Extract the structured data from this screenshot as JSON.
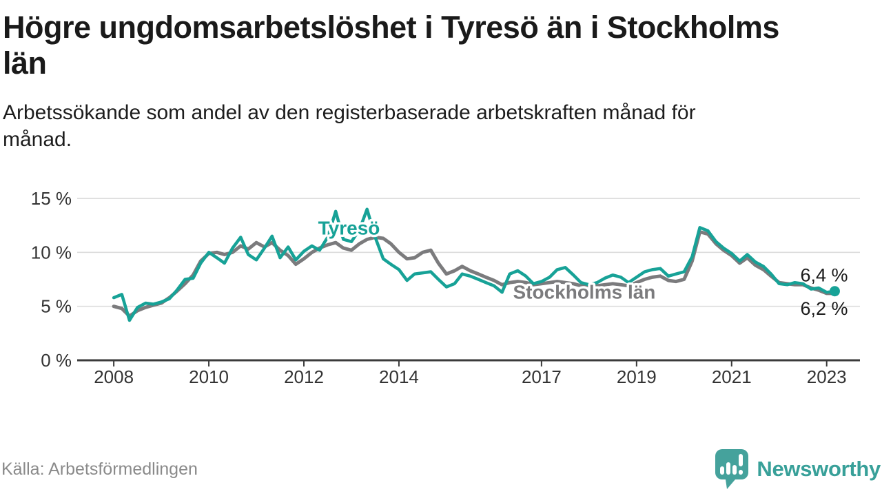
{
  "header": {
    "title_lines": [
      "Högre ungdomsarbetslöshet i Tyresö än i Stockholms",
      "län"
    ],
    "subtitle_lines": [
      "Arbetssökande som andel av den registerbaserade arbetskraften månad för",
      "månad."
    ]
  },
  "footer": {
    "source": "Källa: Arbetsförmedlingen",
    "brand": "Newsworthy"
  },
  "colors": {
    "tyreso": "#17a297",
    "stockholm": "#7b7b7d",
    "grid": "#dcdcdc",
    "axis": "#3b3b3b",
    "tick_label": "#333333",
    "end_label": "#1a1a1a",
    "source_gray": "#8a8a8a",
    "logo_teal": "#45a29c"
  },
  "chart_data": {
    "type": "line",
    "title": "Högre ungdomsarbetslöshet i Tyresö än i Stockholms län",
    "subtitle": "Arbetssökande som andel av den registerbaserade arbetskraften månad för månad.",
    "source": "Källa: Arbetsförmedlingen",
    "ylabel": "",
    "xlabel": "",
    "y_unit": "%",
    "ylim": [
      0,
      15
    ],
    "xlim": [
      2007.23,
      2023.7
    ],
    "grid": true,
    "y_ticks": [
      0,
      5,
      10,
      15
    ],
    "y_tick_labels": [
      "0 %",
      "5 %",
      "10 %",
      "15 %"
    ],
    "x_ticks": [
      2008,
      2010,
      2012,
      2014,
      2017,
      2019,
      2021,
      2023
    ],
    "x_tick_labels": [
      "2008",
      "2010",
      "2012",
      "2014",
      "2017",
      "2019",
      "2021",
      "2023"
    ],
    "series": [
      {
        "name": "Stockholms län",
        "color": "#7b7b7d",
        "line_width": 5,
        "end_label": "6,2 %",
        "end_dot": false,
        "label_anchor": {
          "x": 2017.9,
          "y": 6.35
        },
        "points": [
          [
            2008.0,
            5.0
          ],
          [
            2008.17,
            4.8
          ],
          [
            2008.33,
            4.1
          ],
          [
            2008.5,
            4.6
          ],
          [
            2008.67,
            4.9
          ],
          [
            2008.83,
            5.1
          ],
          [
            2009.0,
            5.3
          ],
          [
            2009.17,
            5.8
          ],
          [
            2009.33,
            6.4
          ],
          [
            2009.5,
            7.1
          ],
          [
            2009.67,
            7.9
          ],
          [
            2009.83,
            9.2
          ],
          [
            2010.0,
            9.9
          ],
          [
            2010.17,
            10.0
          ],
          [
            2010.33,
            9.8
          ],
          [
            2010.5,
            10.0
          ],
          [
            2010.67,
            10.6
          ],
          [
            2010.83,
            10.3
          ],
          [
            2011.0,
            10.9
          ],
          [
            2011.17,
            10.5
          ],
          [
            2011.33,
            10.9
          ],
          [
            2011.5,
            10.2
          ],
          [
            2011.67,
            9.7
          ],
          [
            2011.83,
            8.9
          ],
          [
            2012.0,
            9.4
          ],
          [
            2012.17,
            10.0
          ],
          [
            2012.33,
            10.4
          ],
          [
            2012.5,
            10.7
          ],
          [
            2012.67,
            10.9
          ],
          [
            2012.83,
            10.4
          ],
          [
            2013.0,
            10.2
          ],
          [
            2013.17,
            10.8
          ],
          [
            2013.33,
            11.2
          ],
          [
            2013.5,
            11.4
          ],
          [
            2013.67,
            11.3
          ],
          [
            2013.83,
            10.8
          ],
          [
            2014.0,
            10.0
          ],
          [
            2014.17,
            9.4
          ],
          [
            2014.33,
            9.5
          ],
          [
            2014.5,
            10.0
          ],
          [
            2014.67,
            10.2
          ],
          [
            2014.83,
            9.0
          ],
          [
            2015.0,
            8.0
          ],
          [
            2015.17,
            8.3
          ],
          [
            2015.33,
            8.7
          ],
          [
            2015.5,
            8.3
          ],
          [
            2015.67,
            8.0
          ],
          [
            2015.83,
            7.7
          ],
          [
            2016.0,
            7.4
          ],
          [
            2016.17,
            7.0
          ],
          [
            2016.33,
            7.2
          ],
          [
            2016.5,
            7.3
          ],
          [
            2016.67,
            7.2
          ],
          [
            2016.83,
            7.0
          ],
          [
            2017.0,
            7.1
          ],
          [
            2017.17,
            7.2
          ],
          [
            2017.33,
            7.3
          ],
          [
            2017.5,
            7.2
          ],
          [
            2017.67,
            7.1
          ],
          [
            2017.83,
            6.9
          ],
          [
            2018.0,
            6.8
          ],
          [
            2018.17,
            6.9
          ],
          [
            2018.33,
            7.0
          ],
          [
            2018.5,
            7.1
          ],
          [
            2018.67,
            7.0
          ],
          [
            2018.83,
            6.9
          ],
          [
            2019.0,
            7.2
          ],
          [
            2019.17,
            7.5
          ],
          [
            2019.33,
            7.7
          ],
          [
            2019.5,
            7.8
          ],
          [
            2019.67,
            7.4
          ],
          [
            2019.83,
            7.3
          ],
          [
            2020.0,
            7.5
          ],
          [
            2020.17,
            9.2
          ],
          [
            2020.33,
            11.9
          ],
          [
            2020.5,
            11.7
          ],
          [
            2020.67,
            10.8
          ],
          [
            2020.83,
            10.2
          ],
          [
            2021.0,
            9.7
          ],
          [
            2021.17,
            9.0
          ],
          [
            2021.33,
            9.5
          ],
          [
            2021.5,
            8.8
          ],
          [
            2021.67,
            8.4
          ],
          [
            2021.83,
            7.8
          ],
          [
            2022.0,
            7.2
          ],
          [
            2022.17,
            7.1
          ],
          [
            2022.33,
            7.0
          ],
          [
            2022.5,
            7.0
          ],
          [
            2022.67,
            6.7
          ],
          [
            2022.83,
            6.5
          ],
          [
            2023.0,
            6.2
          ],
          [
            2023.17,
            6.2
          ]
        ]
      },
      {
        "name": "Tyresö",
        "color": "#17a297",
        "line_width": 4.5,
        "end_label": "6,4 %",
        "end_dot": true,
        "label_anchor": {
          "x": 2012.95,
          "y": 12.3
        },
        "points": [
          [
            2008.0,
            5.8
          ],
          [
            2008.17,
            6.1
          ],
          [
            2008.33,
            3.7
          ],
          [
            2008.5,
            4.9
          ],
          [
            2008.67,
            5.3
          ],
          [
            2008.83,
            5.2
          ],
          [
            2009.0,
            5.4
          ],
          [
            2009.17,
            5.7
          ],
          [
            2009.33,
            6.5
          ],
          [
            2009.5,
            7.5
          ],
          [
            2009.67,
            7.6
          ],
          [
            2009.83,
            9.0
          ],
          [
            2010.0,
            10.0
          ],
          [
            2010.17,
            9.5
          ],
          [
            2010.33,
            9.0
          ],
          [
            2010.5,
            10.4
          ],
          [
            2010.67,
            11.4
          ],
          [
            2010.83,
            9.8
          ],
          [
            2011.0,
            9.3
          ],
          [
            2011.17,
            10.4
          ],
          [
            2011.33,
            11.5
          ],
          [
            2011.5,
            9.5
          ],
          [
            2011.67,
            10.5
          ],
          [
            2011.83,
            9.3
          ],
          [
            2012.0,
            10.1
          ],
          [
            2012.17,
            10.6
          ],
          [
            2012.33,
            10.2
          ],
          [
            2012.5,
            11.4
          ],
          [
            2012.67,
            13.8
          ],
          [
            2012.83,
            11.2
          ],
          [
            2013.0,
            11.0
          ],
          [
            2013.17,
            12.1
          ],
          [
            2013.33,
            14.0
          ],
          [
            2013.5,
            11.4
          ],
          [
            2013.67,
            9.4
          ],
          [
            2013.83,
            8.9
          ],
          [
            2014.0,
            8.4
          ],
          [
            2014.17,
            7.4
          ],
          [
            2014.33,
            8.0
          ],
          [
            2014.5,
            8.1
          ],
          [
            2014.67,
            8.2
          ],
          [
            2014.83,
            7.5
          ],
          [
            2015.0,
            6.8
          ],
          [
            2015.17,
            7.1
          ],
          [
            2015.33,
            8.0
          ],
          [
            2015.5,
            7.8
          ],
          [
            2015.67,
            7.5
          ],
          [
            2015.83,
            7.2
          ],
          [
            2016.0,
            6.9
          ],
          [
            2016.17,
            6.3
          ],
          [
            2016.33,
            8.0
          ],
          [
            2016.5,
            8.3
          ],
          [
            2016.67,
            7.8
          ],
          [
            2016.83,
            7.1
          ],
          [
            2017.0,
            7.3
          ],
          [
            2017.17,
            7.7
          ],
          [
            2017.33,
            8.4
          ],
          [
            2017.5,
            8.6
          ],
          [
            2017.67,
            7.9
          ],
          [
            2017.83,
            7.2
          ],
          [
            2018.0,
            7.0
          ],
          [
            2018.17,
            7.2
          ],
          [
            2018.33,
            7.6
          ],
          [
            2018.5,
            7.9
          ],
          [
            2018.67,
            7.7
          ],
          [
            2018.83,
            7.2
          ],
          [
            2019.0,
            7.7
          ],
          [
            2019.17,
            8.2
          ],
          [
            2019.33,
            8.4
          ],
          [
            2019.5,
            8.5
          ],
          [
            2019.67,
            7.8
          ],
          [
            2019.83,
            8.0
          ],
          [
            2020.0,
            8.2
          ],
          [
            2020.17,
            9.6
          ],
          [
            2020.33,
            12.3
          ],
          [
            2020.5,
            12.0
          ],
          [
            2020.67,
            11.0
          ],
          [
            2020.83,
            10.4
          ],
          [
            2021.0,
            9.9
          ],
          [
            2021.17,
            9.2
          ],
          [
            2021.33,
            9.8
          ],
          [
            2021.5,
            9.1
          ],
          [
            2021.67,
            8.7
          ],
          [
            2021.83,
            8.0
          ],
          [
            2022.0,
            7.1
          ],
          [
            2022.17,
            7.0
          ],
          [
            2022.33,
            7.2
          ],
          [
            2022.5,
            7.1
          ],
          [
            2022.67,
            6.6
          ],
          [
            2022.83,
            6.7
          ],
          [
            2023.0,
            6.3
          ],
          [
            2023.17,
            6.4
          ]
        ]
      }
    ]
  }
}
